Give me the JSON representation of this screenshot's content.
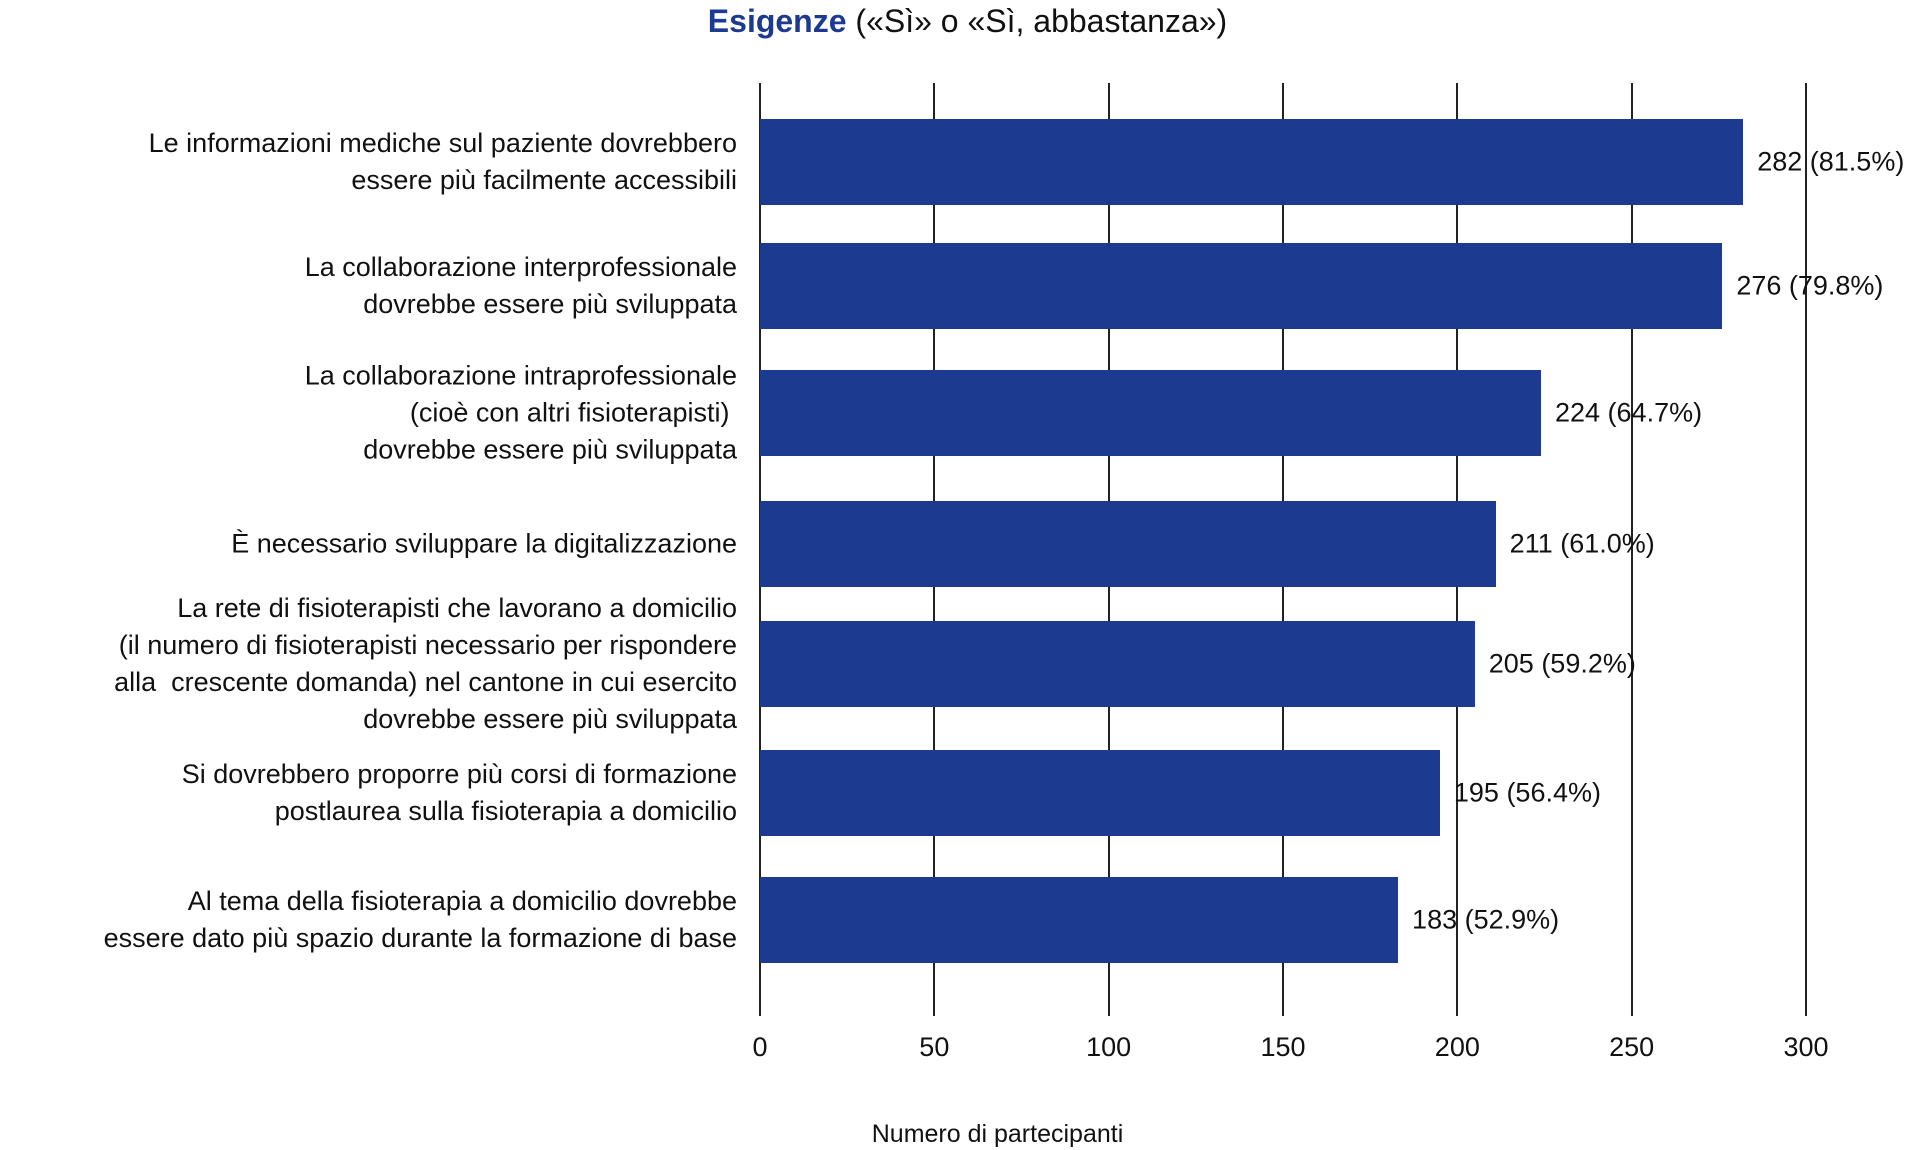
{
  "chart_data": {
    "type": "bar",
    "orientation": "horizontal",
    "title_bold": "Esigenze",
    "title_rest": " («Sì» o «Sì, abbastanza»)",
    "xlabel": "Numero di partecipanti",
    "ylabel": "",
    "xlim": [
      0,
      300
    ],
    "xticks": [
      "0",
      "50",
      "100",
      "150",
      "200",
      "250",
      "300"
    ],
    "grid": true,
    "bar_color": "#1c3a8f",
    "categories": [
      "Le informazioni mediche sul paziente dovrebbero\nessere più facilmente accessibili",
      "La collaborazione interprofessionale\ndovrebbe essere più sviluppata",
      "La collaborazione intraprofessionale\n(cioè con altri fisioterapisti) \ndovrebbe essere più sviluppata",
      "È necessario sviluppare la digitalizzazione",
      "La rete di fisioterapisti che lavorano a domicilio\n(il numero di fisioterapisti necessario per rispondere\nalla  crescente domanda) nel cantone in cui esercito\ndovrebbe essere più sviluppata",
      "Si dovrebbero proporre più corsi di formazione\npostlaurea sulla fisioterapia a domicilio",
      "Al tema della fisioterapia a domicilio dovrebbe\nessere dato più spazio durante la formazione di base"
    ],
    "values": [
      282,
      276,
      224,
      211,
      205,
      195,
      183
    ],
    "data_labels": [
      "282 (81.5%)",
      "276 (79.8%)",
      "224 (64.7%)",
      "211 (61.0%)",
      "205 (59.2%)",
      "195 (56.4%)",
      "183 (52.9%)"
    ]
  }
}
